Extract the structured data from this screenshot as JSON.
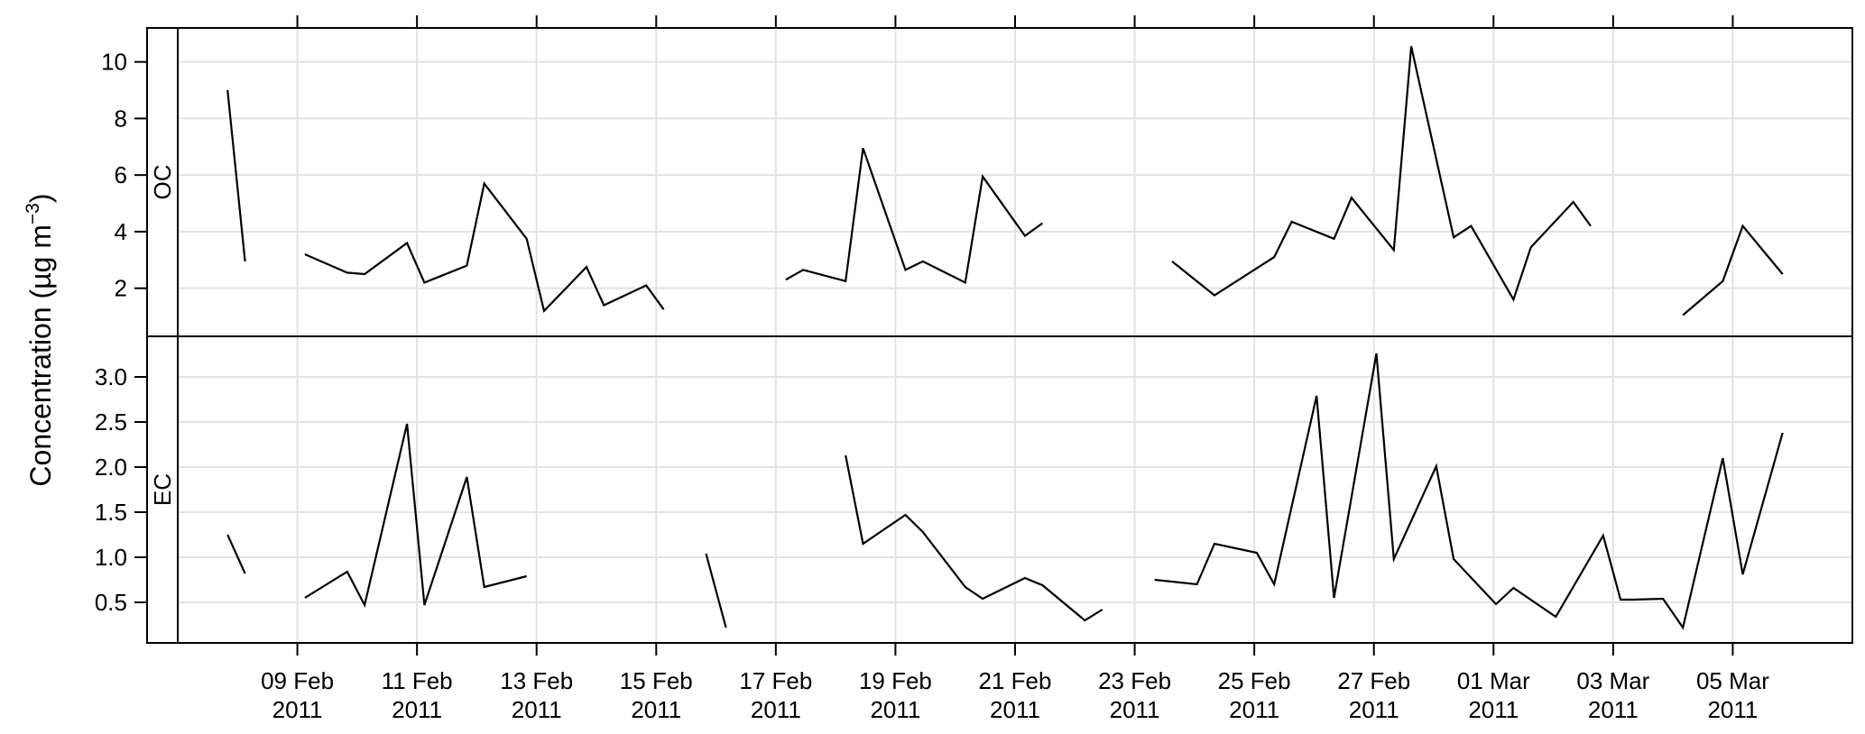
{
  "chart_data": {
    "type": "line",
    "ylabel": "Concentration (µg m",
    "ylabel_superscript": "−3",
    "ylabel_close": ")",
    "x_date_range": [
      "2011-02-07",
      "2011-03-07"
    ],
    "x_ticks": [
      {
        "date": "2011-02-09",
        "line1": "09 Feb",
        "line2": "2011"
      },
      {
        "date": "2011-02-11",
        "line1": "11 Feb",
        "line2": "2011"
      },
      {
        "date": "2011-02-13",
        "line1": "13 Feb",
        "line2": "2011"
      },
      {
        "date": "2011-02-15",
        "line1": "15 Feb",
        "line2": "2011"
      },
      {
        "date": "2011-02-17",
        "line1": "17 Feb",
        "line2": "2011"
      },
      {
        "date": "2011-02-19",
        "line1": "19 Feb",
        "line2": "2011"
      },
      {
        "date": "2011-02-21",
        "line1": "21 Feb",
        "line2": "2011"
      },
      {
        "date": "2011-02-23",
        "line1": "23 Feb",
        "line2": "2011"
      },
      {
        "date": "2011-02-25",
        "line1": "25 Feb",
        "line2": "2011"
      },
      {
        "date": "2011-02-27",
        "line1": "27 Feb",
        "line2": "2011"
      },
      {
        "date": "2011-03-01",
        "line1": "01 Mar",
        "line2": "2011"
      },
      {
        "date": "2011-03-03",
        "line1": "03 Mar",
        "line2": "2011"
      },
      {
        "date": "2011-03-05",
        "line1": "05 Mar",
        "line2": "2011"
      }
    ],
    "grid": true,
    "panels": [
      {
        "name": "OC",
        "ylim": [
          0.3,
          11.2
        ],
        "yticks": [
          2,
          4,
          6,
          8,
          10
        ],
        "segments": [
          [
            [
              "2011-02-07T20:00",
              9.0
            ],
            [
              "2011-02-08T03:00",
              2.95
            ]
          ],
          [
            [
              "2011-02-09T03:00",
              3.2
            ],
            [
              "2011-02-09T20:00",
              2.55
            ],
            [
              "2011-02-10T03:00",
              2.5
            ],
            [
              "2011-02-10T20:00",
              3.6
            ],
            [
              "2011-02-11T03:00",
              2.2
            ],
            [
              "2011-02-11T20:00",
              2.8
            ],
            [
              "2011-02-12T03:00",
              5.7
            ],
            [
              "2011-02-12T20:00",
              3.75
            ],
            [
              "2011-02-13T03:00",
              1.2
            ],
            [
              "2011-02-13T20:00",
              2.75
            ],
            [
              "2011-02-14T03:00",
              1.4
            ],
            [
              "2011-02-14T20:00",
              2.1
            ],
            [
              "2011-02-15T03:00",
              1.25
            ]
          ],
          [
            [
              "2011-02-17T04:00",
              2.3
            ],
            [
              "2011-02-17T11:00",
              2.65
            ],
            [
              "2011-02-18T04:00",
              2.25
            ],
            [
              "2011-02-18T11:00",
              6.95
            ],
            [
              "2011-02-19T04:00",
              2.65
            ],
            [
              "2011-02-19T11:00",
              2.95
            ],
            [
              "2011-02-20T04:00",
              2.2
            ],
            [
              "2011-02-20T11:00",
              5.95
            ],
            [
              "2011-02-21T04:00",
              3.85
            ],
            [
              "2011-02-21T11:00",
              4.3
            ]
          ],
          [
            [
              "2011-02-23T15:00",
              2.95
            ],
            [
              "2011-02-24T08:00",
              1.75
            ],
            [
              "2011-02-25T08:00",
              3.1
            ],
            [
              "2011-02-25T15:00",
              4.35
            ],
            [
              "2011-02-26T08:00",
              3.75
            ],
            [
              "2011-02-26T15:00",
              5.2
            ],
            [
              "2011-02-27T08:00",
              3.35
            ],
            [
              "2011-02-27T15:00",
              10.55
            ],
            [
              "2011-02-28T08:00",
              3.8
            ],
            [
              "2011-02-28T15:00",
              4.2
            ],
            [
              "2011-03-01T08:00",
              1.6
            ],
            [
              "2011-03-01T15:00",
              3.45
            ],
            [
              "2011-03-02T08:00",
              5.05
            ],
            [
              "2011-03-02T15:00",
              4.2
            ]
          ],
          [
            [
              "2011-03-04T04:00",
              1.05
            ],
            [
              "2011-03-04T20:00",
              2.25
            ],
            [
              "2011-03-05T04:00",
              4.2
            ],
            [
              "2011-03-05T20:00",
              2.5
            ]
          ]
        ]
      },
      {
        "name": "EC",
        "ylim": [
          0.05,
          3.45
        ],
        "yticks": [
          0.5,
          1.0,
          1.5,
          2.0,
          2.5,
          3.0
        ],
        "ytick_labels": [
          "0.5",
          "1.0",
          "1.5",
          "2.0",
          "2.5",
          "3.0"
        ],
        "segments": [
          [
            [
              "2011-02-07T20:00",
              1.25
            ],
            [
              "2011-02-08T03:00",
              0.82
            ]
          ],
          [
            [
              "2011-02-09T03:00",
              0.55
            ],
            [
              "2011-02-09T20:00",
              0.84
            ],
            [
              "2011-02-10T03:00",
              0.47
            ],
            [
              "2011-02-10T20:00",
              2.48
            ],
            [
              "2011-02-11T03:00",
              0.47
            ],
            [
              "2011-02-11T20:00",
              1.89
            ],
            [
              "2011-02-12T03:00",
              0.67
            ],
            [
              "2011-02-12T20:00",
              0.79
            ]
          ],
          [
            [
              "2011-02-15T20:00",
              1.04
            ],
            [
              "2011-02-16T04:00",
              0.22
            ]
          ],
          [
            [
              "2011-02-18T04:00",
              2.13
            ],
            [
              "2011-02-18T11:00",
              1.15
            ],
            [
              "2011-02-19T04:00",
              1.47
            ],
            [
              "2011-02-19T11:00",
              1.28
            ],
            [
              "2011-02-20T04:00",
              0.67
            ],
            [
              "2011-02-20T11:00",
              0.54
            ],
            [
              "2011-02-21T04:00",
              0.77
            ],
            [
              "2011-02-21T11:00",
              0.69
            ],
            [
              "2011-02-22T04:00",
              0.3
            ],
            [
              "2011-02-22T11:00",
              0.42
            ]
          ],
          [
            [
              "2011-02-23T08:00",
              0.75
            ],
            [
              "2011-02-24T01:00",
              0.7
            ],
            [
              "2011-02-24T08:00",
              1.15
            ],
            [
              "2011-02-25T01:00",
              1.05
            ],
            [
              "2011-02-25T08:00",
              0.7
            ],
            [
              "2011-02-26T01:00",
              2.79
            ],
            [
              "2011-02-26T08:00",
              0.55
            ],
            [
              "2011-02-27T01:00",
              3.26
            ],
            [
              "2011-02-27T08:00",
              0.98
            ],
            [
              "2011-02-28T01:00",
              2.01
            ],
            [
              "2011-02-28T08:00",
              0.98
            ],
            [
              "2011-03-01T01:00",
              0.48
            ],
            [
              "2011-03-01T08:00",
              0.66
            ],
            [
              "2011-03-02T01:00",
              0.34
            ],
            [
              "2011-03-02T20:00",
              1.24
            ],
            [
              "2011-03-03T03:00",
              0.53
            ],
            [
              "2011-03-03T08:00",
              0.53
            ],
            [
              "2011-03-03T20:00",
              0.54
            ],
            [
              "2011-03-04T04:00",
              0.22
            ],
            [
              "2011-03-04T20:00",
              2.1
            ],
            [
              "2011-03-05T04:00",
              0.81
            ],
            [
              "2011-03-05T20:00",
              2.38
            ]
          ]
        ]
      }
    ]
  }
}
